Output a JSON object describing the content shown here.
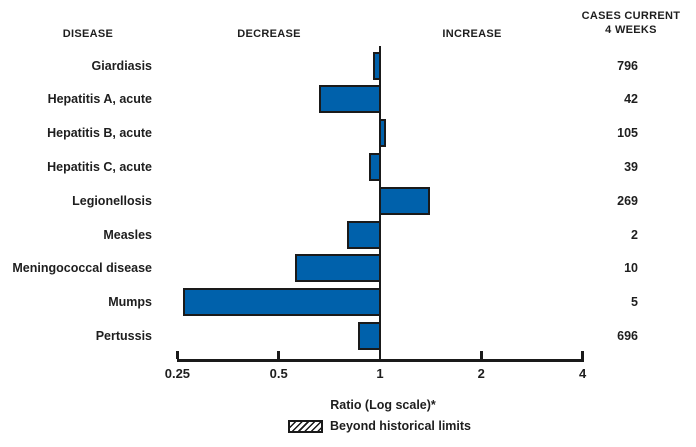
{
  "header": {
    "disease": "DISEASE",
    "decrease": "DECREASE",
    "increase": "INCREASE",
    "cases_line1": "CASES CURRENT",
    "cases_line2": "4 WEEKS"
  },
  "chart_data": {
    "type": "bar",
    "orientation": "horizontal",
    "scale": "log2",
    "baseline": 1,
    "xlabel": "Ratio (Log scale)*",
    "x_ticks": [
      0.25,
      0.5,
      1,
      2,
      4
    ],
    "x_tick_labels": [
      "0.25",
      "0.5",
      "1",
      "2",
      "4"
    ],
    "xlim": [
      0.25,
      4
    ],
    "rows": [
      {
        "disease": "Giardiasis",
        "ratio": 0.95,
        "cases": "796"
      },
      {
        "disease": "Hepatitis A, acute",
        "ratio": 0.66,
        "cases": "42"
      },
      {
        "disease": "Hepatitis B, acute",
        "ratio": 1.04,
        "cases": "105"
      },
      {
        "disease": "Hepatitis C, acute",
        "ratio": 0.93,
        "cases": "39"
      },
      {
        "disease": "Legionellosis",
        "ratio": 1.41,
        "cases": "269"
      },
      {
        "disease": "Measles",
        "ratio": 0.8,
        "cases": "2"
      },
      {
        "disease": "Meningococcal disease",
        "ratio": 0.56,
        "cases": "10"
      },
      {
        "disease": "Mumps",
        "ratio": 0.26,
        "cases": "5"
      },
      {
        "disease": "Pertussis",
        "ratio": 0.86,
        "cases": "696"
      }
    ],
    "legend": [
      {
        "label": "Beyond historical limits",
        "style": "hatched"
      }
    ],
    "colors": {
      "bar_fill": "#0061ab",
      "bar_border": "#1a1a1a",
      "axis": "#1a1a1a",
      "text": "#1e1e1e",
      "background": "#ffffff"
    }
  }
}
